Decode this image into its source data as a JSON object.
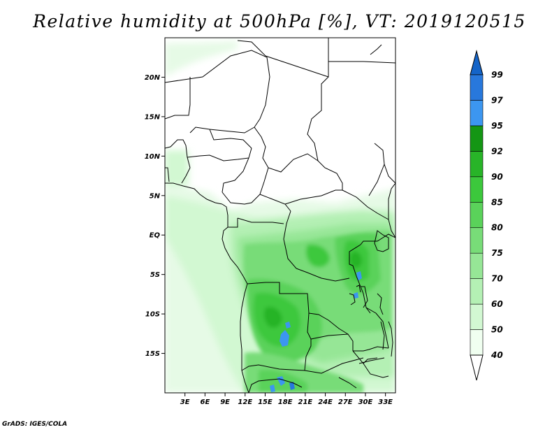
{
  "title": "Relative humidity at 500hPa [%], VT: 2019120515",
  "footer": "GrADS: IGES/COLA",
  "map": {
    "lon_range": [
      0,
      34.5
    ],
    "lat_range": [
      -20,
      25
    ],
    "lat_labels": [
      "20N",
      "15N",
      "10N",
      "5N",
      "EQ",
      "5S",
      "10S",
      "15S"
    ],
    "lon_labels": [
      "3E",
      "6E",
      "9E",
      "12E",
      "15E",
      "18E",
      "21E",
      "24E",
      "27E",
      "30E",
      "33E"
    ]
  },
  "colorbar": {
    "levels": [
      "40",
      "50",
      "60",
      "70",
      "75",
      "80",
      "85",
      "90",
      "92",
      "95",
      "97",
      "99"
    ],
    "colors": [
      "#f0fff0",
      "#d2f8d2",
      "#b4f0b4",
      "#96e696",
      "#78dc78",
      "#5ad25a",
      "#3cc83c",
      "#28b428",
      "#149614",
      "#3c96f0",
      "#2878dc",
      "#1464c8"
    ]
  }
}
